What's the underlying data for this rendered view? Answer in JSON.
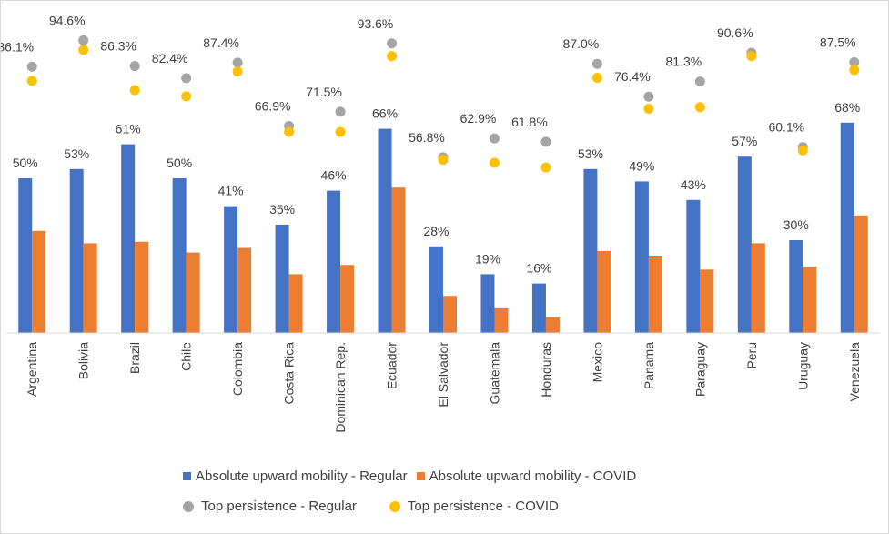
{
  "chart_data": {
    "type": "bar",
    "categories": [
      "Argentina",
      "Bolivia",
      "Brazil",
      "Chile",
      "Colombia",
      "Costa Rica",
      "Dominican Rep.",
      "Ecuador",
      "El Salvador",
      "Guatemala",
      "Honduras",
      "Mexico",
      "Panama",
      "Paraguay",
      "Peru",
      "Uruguay",
      "Venezuela"
    ],
    "ylim": [
      0,
      100
    ],
    "grid": false,
    "legend_position": "bottom",
    "series": [
      {
        "name": "Absolute upward mobility - Regular",
        "kind": "bar",
        "color": "#4472C4",
        "values": [
          50,
          53,
          61,
          50,
          41,
          35,
          46,
          66,
          28,
          19,
          16,
          53,
          49,
          43,
          57,
          30,
          68
        ],
        "labels": [
          "50%",
          "53%",
          "61%",
          "50%",
          "41%",
          "35%",
          "46%",
          "66%",
          "28%",
          "19%",
          "16%",
          "53%",
          "49%",
          "43%",
          "57%",
          "30%",
          "68%"
        ]
      },
      {
        "name": "Absolute upward mobility - COVID",
        "kind": "bar",
        "color": "#ED7D31",
        "values": [
          33,
          29,
          29.5,
          26,
          27.5,
          19,
          22,
          47,
          12,
          8,
          5,
          26.5,
          25,
          20.5,
          29,
          21.5,
          38
        ]
      },
      {
        "name": "Top persistence - Regular",
        "kind": "dot",
        "color": "#A5A5A5",
        "values": [
          86.1,
          94.6,
          86.3,
          82.4,
          87.4,
          66.9,
          71.5,
          93.6,
          56.8,
          62.9,
          61.8,
          87.0,
          76.4,
          81.3,
          90.6,
          60.1,
          87.5
        ],
        "labels": [
          "86.1%",
          "94.6%",
          "86.3%",
          "82.4%",
          "87.4%",
          "66.9%",
          "71.5%",
          "93.6%",
          "56.8%",
          "62.9%",
          "61.8%",
          "87.0%",
          "76.4%",
          "81.3%",
          "90.6%",
          "60.1%",
          "87.5%"
        ]
      },
      {
        "name": "Top persistence - COVID",
        "kind": "dot",
        "color": "#FFC000",
        "values": [
          81.5,
          91.5,
          78.5,
          76.5,
          84.5,
          65,
          65,
          89.5,
          56,
          55,
          53.5,
          82.5,
          72.5,
          73,
          89.5,
          59,
          85
        ]
      }
    ]
  },
  "legend": {
    "bar_regular": "Absolute upward mobility - Regular",
    "bar_covid": "Absolute upward mobility - COVID",
    "dot_regular": "Top persistence - Regular",
    "dot_covid": "Top persistence - COVID"
  }
}
